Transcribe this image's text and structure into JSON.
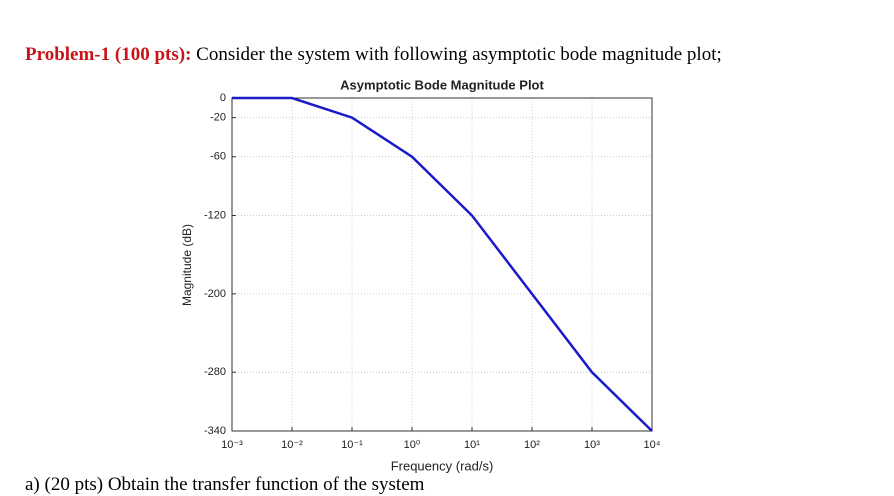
{
  "header": {
    "label": "Problem-1 (100 pts):",
    "text": "Consider the system with following asymptotic bode magnitude plot;"
  },
  "chart_data": {
    "type": "line",
    "title": "Asymptotic Bode Magnitude Plot",
    "xlabel": "Frequency (rad/s)",
    "ylabel": "Magnitude (dB)",
    "x": [
      0.001,
      0.01,
      0.1,
      1,
      10,
      100,
      1000,
      10000
    ],
    "series": [
      {
        "name": "Magnitude",
        "color": "#1a1ac8",
        "values": [
          0,
          0,
          -20,
          -60,
          -120,
          -200,
          -280,
          -340
        ]
      }
    ],
    "xscale": "log",
    "xlim": [
      0.001,
      10000
    ],
    "xticks": [
      {
        "value": 0.001,
        "label": "10⁻³"
      },
      {
        "value": 0.01,
        "label": "10⁻²"
      },
      {
        "value": 0.1,
        "label": "10⁻¹"
      },
      {
        "value": 1,
        "label": "10⁰"
      },
      {
        "value": 10,
        "label": "10¹"
      },
      {
        "value": 100,
        "label": "10²"
      },
      {
        "value": 1000,
        "label": "10³"
      },
      {
        "value": 10000,
        "label": "10⁴"
      }
    ],
    "ylim": [
      -340,
      0
    ],
    "yticks": [
      0,
      -20,
      -60,
      -120,
      -200,
      -280,
      -340
    ],
    "grid": true
  },
  "footer": {
    "text": "a) (20 pts) Obtain the transfer function of the system"
  }
}
